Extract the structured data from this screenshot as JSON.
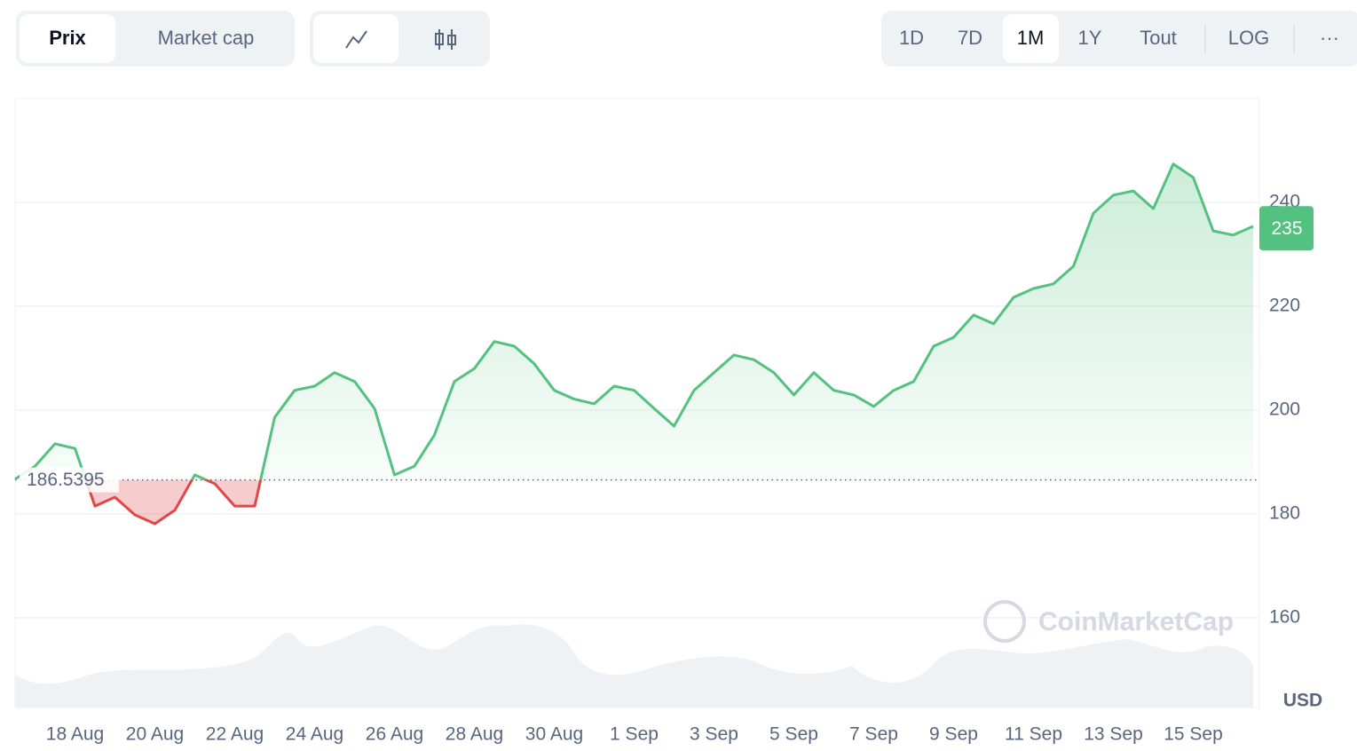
{
  "ui": {
    "tabs": [
      "Prix",
      "Market cap"
    ],
    "ranges": [
      "1D",
      "7D",
      "1M",
      "1Y",
      "Tout"
    ],
    "log": "LOG",
    "more": "···",
    "currency": "USD",
    "watermark": "CoinMarketCap"
  },
  "chart_data": {
    "type": "line",
    "categories": [
      null,
      null,
      null,
      "18 Aug",
      null,
      null,
      null,
      "20 Aug",
      null,
      null,
      null,
      "22 Aug",
      null,
      null,
      null,
      "24 Aug",
      null,
      null,
      null,
      "26 Aug",
      null,
      null,
      null,
      "28 Aug",
      null,
      null,
      null,
      "30 Aug",
      null,
      null,
      null,
      "1 Sep",
      null,
      null,
      null,
      "3 Sep",
      null,
      null,
      null,
      "5 Sep",
      null,
      null,
      null,
      "7 Sep",
      null,
      null,
      null,
      "9 Sep",
      null,
      null,
      null,
      "11 Sep",
      null,
      null,
      null,
      "13 Sep",
      null,
      null,
      null,
      "15 Sep",
      null,
      null,
      null
    ],
    "values": [
      186.7,
      189.2,
      193.5,
      192.6,
      181.5,
      183.2,
      179.8,
      178.1,
      180.7,
      187.5,
      185.8,
      181.5,
      181.5,
      198.6,
      203.8,
      204.6,
      207.2,
      205.5,
      200.3,
      187.5,
      189.2,
      195.2,
      205.5,
      208.0,
      213.2,
      212.3,
      208.9,
      203.8,
      202.1,
      201.2,
      204.6,
      203.8,
      200.3,
      196.9,
      203.8,
      207.2,
      210.6,
      209.7,
      207.2,
      202.9,
      207.2,
      203.8,
      202.9,
      200.7,
      203.8,
      205.5,
      212.3,
      214.0,
      218.3,
      216.6,
      221.7,
      223.4,
      224.3,
      227.7,
      237.9,
      241.4,
      242.2,
      238.8,
      247.4,
      244.8,
      234.5,
      233.7,
      235.4
    ],
    "baseline": 186.5395,
    "current_value": 235,
    "up_color": "#53c17f",
    "down_color": "#e04848",
    "ylim": [
      142.7,
      260
    ],
    "yticks": [
      160,
      180,
      200,
      220,
      240
    ],
    "grid": true
  }
}
